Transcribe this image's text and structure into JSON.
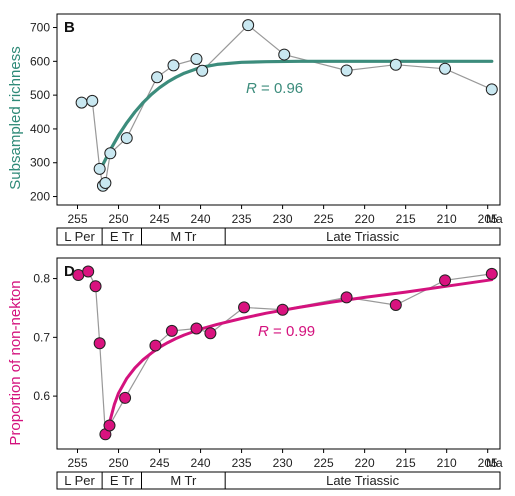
{
  "chart_data": [
    {
      "type": "scatter",
      "panel_label": "B",
      "ylabel": "Subsampled richness",
      "ylabel_color": "#2f8a78",
      "x_unit": "Ma",
      "xlim": [
        257.5,
        203.5
      ],
      "ylim": [
        175,
        740
      ],
      "xticks": [
        255,
        250,
        245,
        240,
        235,
        230,
        225,
        220,
        215,
        210,
        205
      ],
      "yticks": [
        200,
        300,
        400,
        500,
        600,
        700
      ],
      "grid": false,
      "marker_color": "#c9e8f1",
      "line_color": "#999999",
      "fit_color": "#3c8c7c",
      "fit_label_prefix": "R",
      "fit_label_value": " = 0.96",
      "points": [
        {
          "x": 254.5,
          "y": 478
        },
        {
          "x": 253.2,
          "y": 483
        },
        {
          "x": 252.3,
          "y": 282
        },
        {
          "x": 251.9,
          "y": 232
        },
        {
          "x": 251.6,
          "y": 240
        },
        {
          "x": 251.0,
          "y": 328
        },
        {
          "x": 249.0,
          "y": 373
        },
        {
          "x": 245.3,
          "y": 553
        },
        {
          "x": 243.3,
          "y": 588
        },
        {
          "x": 240.5,
          "y": 607
        },
        {
          "x": 239.8,
          "y": 572
        },
        {
          "x": 234.2,
          "y": 707
        },
        {
          "x": 229.8,
          "y": 620
        },
        {
          "x": 222.2,
          "y": 573
        },
        {
          "x": 216.2,
          "y": 590
        },
        {
          "x": 210.2,
          "y": 578
        },
        {
          "x": 204.5,
          "y": 517
        }
      ],
      "fit": {
        "x": [
          252.0,
          251.0,
          250.0,
          249.0,
          248.0,
          247.0,
          246.0,
          245.0,
          244.0,
          243.0,
          242.0,
          240.0,
          238.0,
          235.0,
          232.0,
          228.0,
          224.0,
          220.0,
          215.0,
          210.0,
          205.0,
          204.5
        ],
        "y": [
          290,
          338,
          381,
          418,
          450,
          478,
          502,
          522,
          539,
          553,
          565,
          582,
          591,
          597,
          599,
          600,
          600,
          600,
          600,
          600,
          600,
          600
        ]
      },
      "stages": [
        "L Per",
        "E Tr",
        "M Tr",
        "Late Triassic"
      ],
      "stage_bounds": [
        252.0,
        247.2,
        237.0
      ]
    },
    {
      "type": "scatter",
      "panel_label": "D",
      "ylabel": "Proportion of non-nekton",
      "ylabel_color": "#d4127e",
      "x_unit": "Ma",
      "xlim": [
        257.5,
        203.5
      ],
      "ylim": [
        0.51,
        0.835
      ],
      "xticks": [
        255,
        250,
        245,
        240,
        235,
        230,
        225,
        220,
        215,
        210,
        205
      ],
      "yticks": [
        0.6,
        0.7,
        0.8
      ],
      "grid": false,
      "marker_color": "#d9137f",
      "line_color": "#999999",
      "fit_color": "#d4127e",
      "fit_label_prefix": "R",
      "fit_label_value": " = 0.99",
      "points": [
        {
          "x": 254.9,
          "y": 0.806
        },
        {
          "x": 253.7,
          "y": 0.812
        },
        {
          "x": 252.8,
          "y": 0.787
        },
        {
          "x": 252.3,
          "y": 0.69
        },
        {
          "x": 251.6,
          "y": 0.535
        },
        {
          "x": 251.1,
          "y": 0.55
        },
        {
          "x": 249.2,
          "y": 0.597
        },
        {
          "x": 245.5,
          "y": 0.686
        },
        {
          "x": 243.5,
          "y": 0.711
        },
        {
          "x": 240.5,
          "y": 0.715
        },
        {
          "x": 238.8,
          "y": 0.707
        },
        {
          "x": 234.7,
          "y": 0.751
        },
        {
          "x": 230.0,
          "y": 0.747
        },
        {
          "x": 222.2,
          "y": 0.768
        },
        {
          "x": 216.2,
          "y": 0.755
        },
        {
          "x": 210.2,
          "y": 0.797
        },
        {
          "x": 204.5,
          "y": 0.808
        }
      ],
      "fit": {
        "x": [
          251.3,
          251.0,
          250.5,
          250.0,
          249.0,
          248.0,
          247.0,
          246.0,
          245.0,
          244.0,
          243.0,
          242.0,
          240.0,
          238.0,
          235.0,
          232.0,
          228.0,
          224.0,
          220.0,
          215.0,
          210.0,
          205.0,
          204.5
        ],
        "y": [
          0.54,
          0.56,
          0.586,
          0.605,
          0.63,
          0.648,
          0.662,
          0.673,
          0.683,
          0.691,
          0.698,
          0.704,
          0.714,
          0.722,
          0.732,
          0.741,
          0.751,
          0.76,
          0.768,
          0.777,
          0.787,
          0.797,
          0.798
        ]
      },
      "stages": [
        "L Per",
        "E Tr",
        "M Tr",
        "Late Triassic"
      ],
      "stage_bounds": [
        252.0,
        247.2,
        237.0
      ]
    }
  ]
}
